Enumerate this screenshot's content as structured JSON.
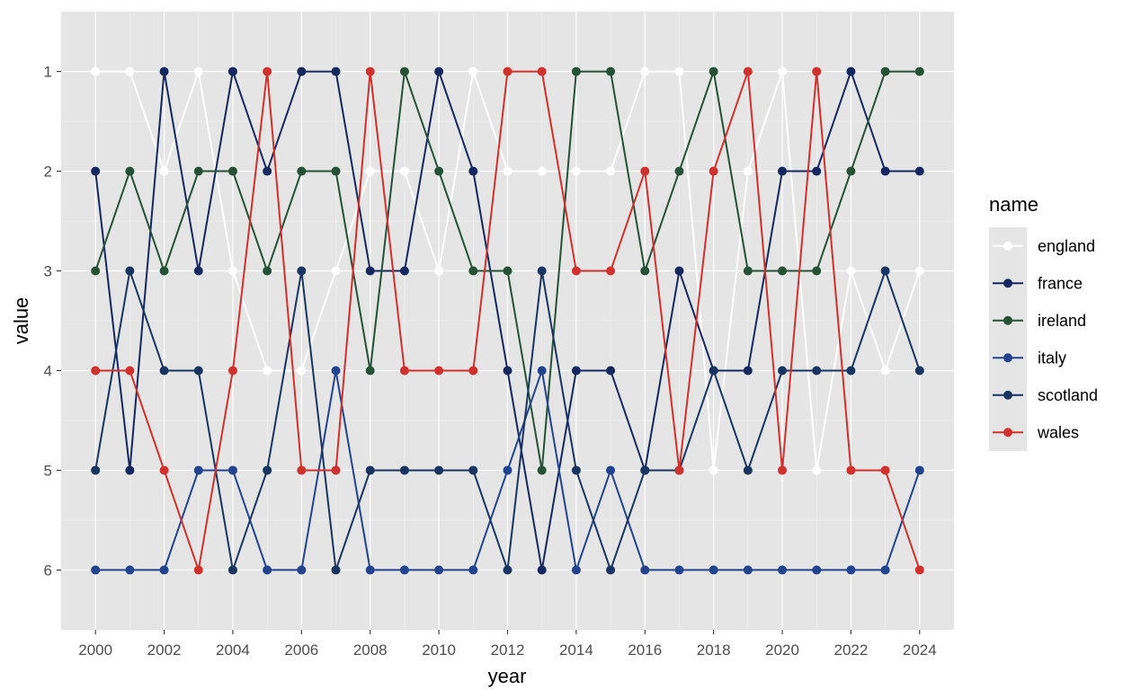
{
  "chart_data": {
    "type": "line",
    "xlabel": "year",
    "ylabel": "value",
    "legend_title": "name",
    "legend_position": "right",
    "y_reversed": true,
    "xlim": [
      1999,
      2025
    ],
    "ylim": [
      0.4,
      6.6
    ],
    "x_ticks": [
      2000,
      2002,
      2004,
      2006,
      2008,
      2010,
      2012,
      2014,
      2016,
      2018,
      2020,
      2022,
      2024
    ],
    "y_ticks": [
      1,
      2,
      3,
      4,
      5,
      6
    ],
    "grid": true,
    "panel_background": "#e5e5e5",
    "x": [
      2000,
      2001,
      2002,
      2003,
      2004,
      2005,
      2006,
      2007,
      2008,
      2009,
      2010,
      2011,
      2012,
      2013,
      2014,
      2015,
      2016,
      2017,
      2018,
      2019,
      2020,
      2021,
      2022,
      2023,
      2024
    ],
    "series": [
      {
        "name": "england",
        "color": "#ffffff",
        "values": [
          1,
          1,
          2,
          1,
          3,
          4,
          4,
          3,
          2,
          2,
          3,
          1,
          2,
          2,
          2,
          2,
          1,
          1,
          5,
          2,
          1,
          5,
          3,
          4,
          3
        ]
      },
      {
        "name": "france",
        "color": "#15275f",
        "values": [
          2,
          5,
          1,
          3,
          1,
          2,
          1,
          1,
          3,
          3,
          1,
          2,
          4,
          6,
          4,
          4,
          5,
          3,
          4,
          4,
          2,
          2,
          1,
          2,
          2
        ]
      },
      {
        "name": "ireland",
        "color": "#255236",
        "values": [
          3,
          2,
          3,
          2,
          2,
          3,
          2,
          2,
          4,
          1,
          2,
          3,
          3,
          5,
          1,
          1,
          3,
          2,
          1,
          3,
          3,
          3,
          2,
          1,
          1
        ]
      },
      {
        "name": "italy",
        "color": "#22448e",
        "values": [
          6,
          6,
          6,
          5,
          5,
          6,
          6,
          4,
          6,
          6,
          6,
          6,
          5,
          4,
          6,
          5,
          6,
          6,
          6,
          6,
          6,
          6,
          6,
          6,
          5
        ]
      },
      {
        "name": "scotland",
        "color": "#173560",
        "values": [
          5,
          3,
          4,
          4,
          6,
          5,
          3,
          6,
          5,
          5,
          5,
          5,
          6,
          3,
          5,
          6,
          5,
          5,
          4,
          5,
          4,
          4,
          4,
          3,
          4
        ]
      },
      {
        "name": "wales",
        "color": "#d0312d",
        "values": [
          4,
          4,
          5,
          6,
          4,
          1,
          5,
          5,
          1,
          4,
          4,
          4,
          1,
          1,
          3,
          3,
          2,
          5,
          2,
          1,
          5,
          1,
          5,
          5,
          6
        ]
      }
    ]
  }
}
